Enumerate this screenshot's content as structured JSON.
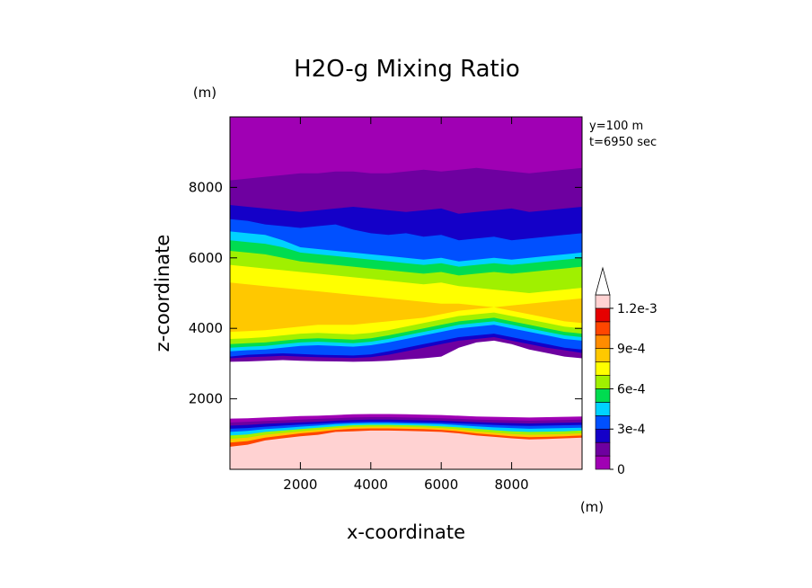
{
  "chart_data": {
    "type": "heatmap",
    "subtype": "filled-contour",
    "title": "H2O-g Mixing Ratio",
    "xlabel": "x-coordinate",
    "ylabel": "z-coordinate",
    "x_unit": "(m)",
    "y_unit": "(m)",
    "annotations": [
      "y=100 m",
      "t=6950 sec"
    ],
    "xlim": [
      0,
      10000
    ],
    "ylim": [
      0,
      10000
    ],
    "xticks": [
      2000,
      4000,
      6000,
      8000
    ],
    "yticks": [
      2000,
      4000,
      6000,
      8000
    ],
    "xtick_labels": [
      "2000",
      "4000",
      "6000",
      "8000"
    ],
    "ytick_labels": [
      "2000",
      "4000",
      "6000",
      "8000"
    ],
    "colorbar": {
      "levels": [
        0,
        0.0001,
        0.0002,
        0.0003,
        0.0004,
        0.0005,
        0.0006,
        0.0007,
        0.0008,
        0.0009,
        0.001,
        0.0011,
        0.0012
      ],
      "tick_labels": [
        "0",
        "3e-4",
        "6e-4",
        "9e-4",
        "1.2e-3"
      ],
      "tick_values": [
        0,
        0.0003,
        0.0006,
        0.0009,
        0.0012
      ],
      "colors": [
        "#a000b4",
        "#6e00a0",
        "#1400c8",
        "#0050ff",
        "#00d2ff",
        "#00dc50",
        "#a0f000",
        "#ffff00",
        "#ffc800",
        "#ff8c00",
        "#ff4600",
        "#e60000",
        "#ffd2d2"
      ],
      "extend": "max"
    },
    "bands": [
      {
        "level_index": 12,
        "z_top": [
          640,
          700,
          820,
          880,
          940,
          980,
          1060,
          1080,
          1100,
          1100,
          1090,
          1080,
          1060,
          1020,
          960,
          920,
          880,
          850,
          860,
          880,
          900
        ],
        "z_bottom": [
          0,
          0,
          0,
          0,
          0,
          0,
          0,
          0,
          0,
          0,
          0,
          0,
          0,
          0,
          0,
          0,
          0,
          0,
          0,
          0,
          0
        ]
      },
      {
        "level_index": 10,
        "z_top": [
          760,
          800,
          900,
          960,
          1020,
          1060,
          1120,
          1150,
          1160,
          1160,
          1150,
          1140,
          1120,
          1080,
          1020,
          980,
          940,
          910,
          920,
          940,
          960
        ]
      },
      {
        "level_index": 8,
        "z_top": [
          860,
          900,
          980,
          1030,
          1080,
          1120,
          1170,
          1200,
          1210,
          1210,
          1200,
          1190,
          1170,
          1130,
          1080,
          1040,
          1000,
          980,
          990,
          1000,
          1020
        ]
      },
      {
        "level_index": 6,
        "z_top": [
          960,
          990,
          1060,
          1100,
          1140,
          1180,
          1220,
          1250,
          1260,
          1260,
          1250,
          1240,
          1220,
          1190,
          1150,
          1110,
          1080,
          1060,
          1070,
          1080,
          1100
        ]
      },
      {
        "level_index": 4,
        "z_top": [
          1060,
          1090,
          1140,
          1170,
          1210,
          1240,
          1280,
          1300,
          1310,
          1310,
          1300,
          1290,
          1280,
          1250,
          1220,
          1190,
          1170,
          1150,
          1160,
          1170,
          1180
        ]
      },
      {
        "level_index": 3,
        "z_top": [
          1150,
          1170,
          1210,
          1240,
          1270,
          1290,
          1320,
          1340,
          1350,
          1350,
          1340,
          1330,
          1320,
          1300,
          1280,
          1260,
          1240,
          1230,
          1240,
          1250,
          1260
        ]
      },
      {
        "level_index": 2,
        "z_top": [
          1240,
          1260,
          1290,
          1310,
          1330,
          1350,
          1380,
          1400,
          1410,
          1410,
          1400,
          1390,
          1380,
          1360,
          1340,
          1320,
          1310,
          1300,
          1310,
          1320,
          1330
        ]
      },
      {
        "level_index": 1,
        "z_top": [
          1330,
          1350,
          1370,
          1390,
          1410,
          1430,
          1450,
          1470,
          1480,
          1480,
          1470,
          1460,
          1450,
          1430,
          1410,
          1400,
          1390,
          1380,
          1390,
          1400,
          1410
        ]
      },
      {
        "level_index": 0,
        "z_top": [
          1440,
          1450,
          1470,
          1490,
          1510,
          1520,
          1540,
          1560,
          1570,
          1570,
          1560,
          1550,
          1540,
          1520,
          1500,
          1490,
          1480,
          1470,
          1480,
          1490,
          1500
        ]
      }
    ],
    "upper_layers": [
      {
        "level_index": 1,
        "z_bottom": [
          3050,
          3060,
          3080,
          3100,
          3080,
          3070,
          3060,
          3050,
          3060,
          3080,
          3120,
          3150,
          3200,
          3450,
          3600,
          3650,
          3550,
          3400,
          3300,
          3200,
          3150
        ],
        "z_top": [
          10000,
          10000,
          10000,
          10000,
          10000,
          10000,
          10000,
          10000,
          10000,
          10000,
          10000,
          10000,
          10000,
          10000,
          10000,
          10000,
          10000,
          10000,
          10000,
          10000,
          10000
        ]
      },
      {
        "level_index": 2,
        "z_bottom": [
          3150,
          3180,
          3200,
          3220,
          3200,
          3180,
          3170,
          3160,
          3180,
          3250,
          3350,
          3450,
          3550,
          3650,
          3700,
          3750,
          3650,
          3550,
          3450,
          3380,
          3300
        ],
        "z_top": [
          7500,
          7450,
          7400,
          7350,
          7300,
          7350,
          7400,
          7450,
          7400,
          7350,
          7300,
          7350,
          7400,
          7250,
          7300,
          7350,
          7400,
          7300,
          7350,
          7400,
          7450
        ]
      },
      {
        "level_index": 3,
        "z_bottom": [
          3200,
          3250,
          3270,
          3290,
          3270,
          3250,
          3240,
          3230,
          3260,
          3350,
          3450,
          3550,
          3650,
          3750,
          3800,
          3850,
          3750,
          3650,
          3550,
          3450,
          3400
        ],
        "z_top": [
          7100,
          7050,
          6950,
          6900,
          6850,
          6900,
          6950,
          6800,
          6700,
          6650,
          6700,
          6600,
          6650,
          6500,
          6550,
          6600,
          6500,
          6550,
          6600,
          6650,
          6700
        ]
      },
      {
        "level_index": 4,
        "z_bottom": [
          3350,
          3380,
          3400,
          3450,
          3500,
          3520,
          3500,
          3480,
          3520,
          3600,
          3700,
          3800,
          3900,
          4000,
          4050,
          4100,
          4000,
          3900,
          3800,
          3700,
          3650
        ],
        "z_top": [
          6750,
          6700,
          6650,
          6500,
          6300,
          6250,
          6200,
          6150,
          6100,
          6050,
          6000,
          5950,
          6000,
          5900,
          5950,
          6000,
          5950,
          6000,
          6050,
          6100,
          6150
        ]
      },
      {
        "level_index": 5,
        "z_bottom": [
          3450,
          3480,
          3500,
          3550,
          3600,
          3620,
          3600,
          3580,
          3620,
          3700,
          3800,
          3900,
          4000,
          4100,
          4150,
          4200,
          4100,
          4000,
          3900,
          3800,
          3750
        ],
        "z_top": [
          6500,
          6450,
          6400,
          6300,
          6150,
          6100,
          6050,
          6000,
          5950,
          5900,
          5850,
          5800,
          5850,
          5750,
          5800,
          5850,
          5800,
          5850,
          5900,
          5950,
          6000
        ]
      },
      {
        "level_index": 6,
        "z_bottom": [
          3550,
          3580,
          3600,
          3650,
          3700,
          3720,
          3700,
          3680,
          3720,
          3800,
          3900,
          4000,
          4100,
          4200,
          4250,
          4300,
          4200,
          4100,
          4000,
          3900,
          3850
        ],
        "z_top": [
          6200,
          6150,
          6100,
          6000,
          5900,
          5850,
          5800,
          5750,
          5700,
          5650,
          5600,
          5550,
          5600,
          5500,
          5550,
          5600,
          5550,
          5600,
          5650,
          5700,
          5750
        ]
      },
      {
        "level_index": 7,
        "z_bottom": [
          3700,
          3720,
          3750,
          3800,
          3850,
          3870,
          3850,
          3830,
          3870,
          3950,
          4050,
          4150,
          4250,
          4350,
          4400,
          4450,
          4350,
          4250,
          4150,
          4050,
          4000
        ],
        "z_top": [
          5800,
          5750,
          5700,
          5650,
          5600,
          5550,
          5500,
          5450,
          5400,
          5350,
          5300,
          5250,
          5300,
          5200,
          5150,
          5100,
          5050,
          5000,
          5050,
          5100,
          5150
        ]
      },
      {
        "level_index": 8,
        "z_bottom": [
          3900,
          3920,
          3950,
          4000,
          4050,
          4100,
          4100,
          4100,
          4150,
          4200,
          4250,
          4300,
          4400,
          4500,
          4550,
          4600,
          4500,
          4400,
          4300,
          4200,
          4150
        ],
        "z_top": [
          5300,
          5250,
          5200,
          5150,
          5100,
          5050,
          5000,
          4950,
          4900,
          4850,
          4800,
          4750,
          4700,
          4700,
          4650,
          4600,
          4650,
          4700,
          4750,
          4800,
          4850
        ]
      },
      {
        "level_index": 0,
        "z_bottom": [
          8200,
          8250,
          8300,
          8350,
          8400,
          8400,
          8450,
          8450,
          8400,
          8400,
          8450,
          8500,
          8450,
          8500,
          8550,
          8500,
          8450,
          8400,
          8450,
          8500,
          8550
        ],
        "z_top": [
          10000,
          10000,
          10000,
          10000,
          10000,
          10000,
          10000,
          10000,
          10000,
          10000,
          10000,
          10000,
          10000,
          10000,
          10000,
          10000,
          10000,
          10000,
          10000,
          10000,
          10000
        ]
      }
    ],
    "dry_layer_fill": "#ffffff",
    "grid": false
  }
}
